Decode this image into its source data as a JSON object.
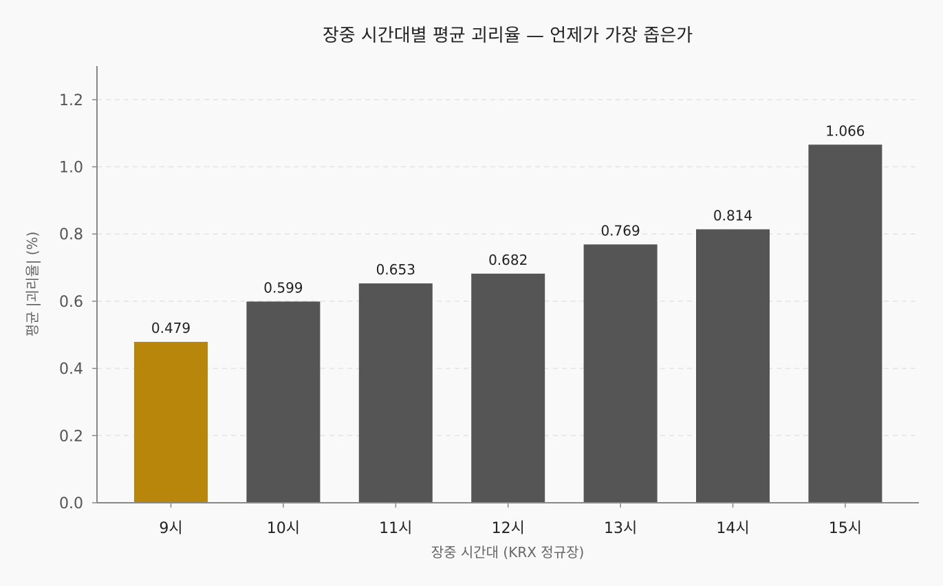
{
  "chart_data": {
    "type": "bar",
    "title": "장중 시간대별 평균 괴리율 — 언제가 가장 좁은가",
    "xlabel": "장중 시간대 (KRX 정규장)",
    "ylabel": "평균 |괴리율| (%)",
    "categories": [
      "9시",
      "10시",
      "11시",
      "12시",
      "13시",
      "14시",
      "15시"
    ],
    "values": [
      0.479,
      0.599,
      0.653,
      0.682,
      0.769,
      0.814,
      1.066
    ],
    "value_labels": [
      "0.479",
      "0.599",
      "0.653",
      "0.682",
      "0.769",
      "0.814",
      "1.066"
    ],
    "ylim": [
      0,
      1.3
    ],
    "yticks": [
      0.0,
      0.2,
      0.4,
      0.6,
      0.8,
      1.0,
      1.2
    ],
    "ytick_labels": [
      "0.0",
      "0.2",
      "0.4",
      "0.6",
      "0.8",
      "1.0",
      "1.2"
    ],
    "grid": "horizontal dashed",
    "highlight_index": 0,
    "colors": {
      "highlight": "#b8860b",
      "bar": "#555555",
      "grid": "#e3e3e3",
      "axis": "#888888",
      "background": "#f9f9f9"
    }
  }
}
